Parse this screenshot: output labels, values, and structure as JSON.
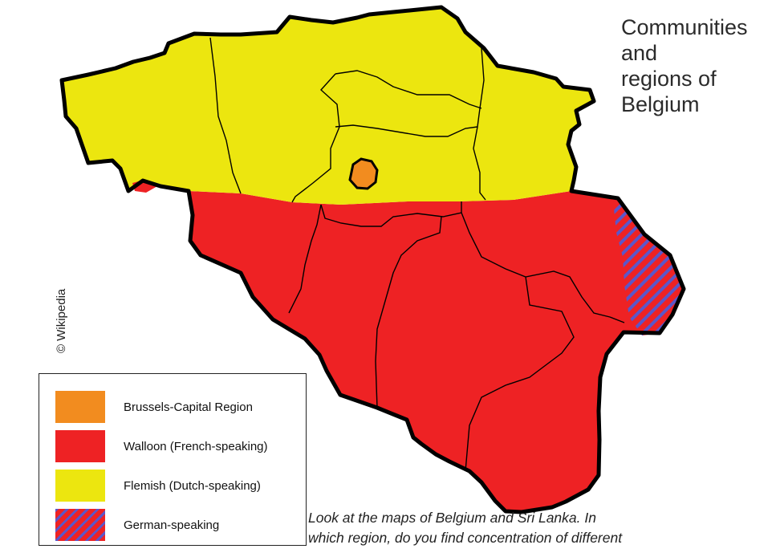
{
  "title_lines": [
    "Communities",
    "and",
    "regions of",
    "Belgium"
  ],
  "credit": "© Wikipedia",
  "legend": [
    {
      "label": "Brussels-Capital Region",
      "color": "#f28c1f",
      "pattern": "solid",
      "icon": "orange-swatch"
    },
    {
      "label": "Walloon (French-speaking)",
      "color": "#ee2224",
      "pattern": "solid",
      "icon": "red-swatch"
    },
    {
      "label": "Flemish (Dutch-speaking)",
      "color": "#ece60f",
      "pattern": "solid",
      "icon": "yellow-swatch"
    },
    {
      "label": "German-speaking",
      "color": "#ee2224",
      "stripe_color": "#5b57c9",
      "pattern": "hatched",
      "icon": "hatched-swatch"
    }
  ],
  "question_lines": [
    "Look at the maps of Belgium and Sri Lanka. In",
    "which region, do you find concentration of different"
  ],
  "colors": {
    "flemish": "#ece60f",
    "walloon": "#ee2224",
    "brussels": "#f28c1f",
    "german_stripe": "#5b57c9",
    "border": "#000000"
  }
}
